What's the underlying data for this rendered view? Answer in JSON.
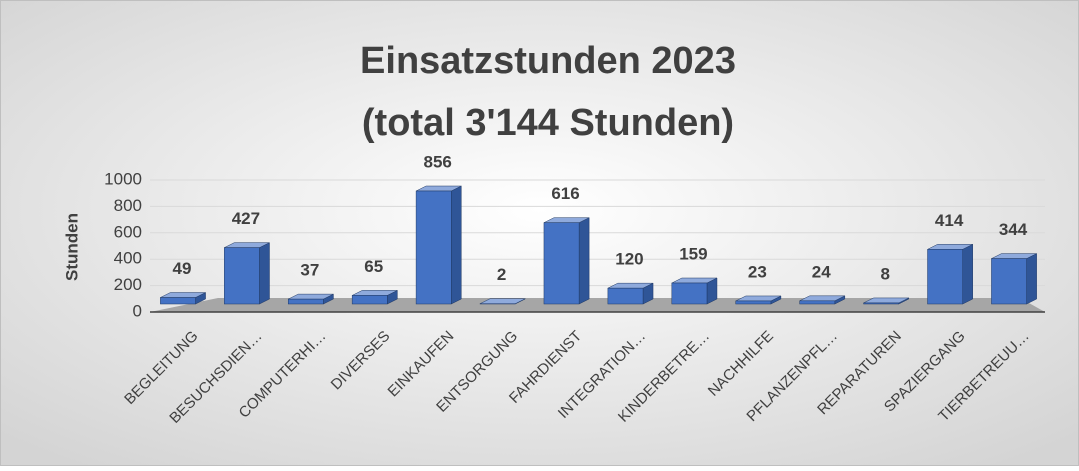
{
  "chart_data": {
    "type": "bar",
    "title": "Einsatzstunden 2023",
    "subtitle": "(total 3'144 Stunden)",
    "y_axis_label": "Stunden",
    "categories": [
      "BEGLEITUNG",
      "BESUCHSDIEN…",
      "COMPUTERHI…",
      "DIVERSES",
      "EINKAUFEN",
      "ENTSORGUNG",
      "FAHRDIENST",
      "INTEGRATION…",
      "KINDERBETRE…",
      "NACHHILFE",
      "PFLANZENPFL…",
      "REPARATUREN",
      "SPAZIERGANG",
      "TIERBETREUU…"
    ],
    "values": [
      49,
      427,
      37,
      65,
      856,
      2,
      616,
      120,
      159,
      23,
      24,
      8,
      414,
      344
    ],
    "color": "#4472c4",
    "ylim": [
      0,
      1000
    ],
    "yticks": [
      0,
      200,
      400,
      600,
      800,
      1000
    ],
    "grid": true
  }
}
